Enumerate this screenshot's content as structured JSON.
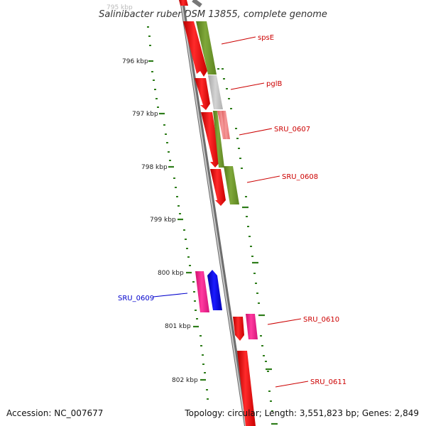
{
  "title": "Salinibacter ruber DSM 13855, complete genome",
  "top_cut_label": "795 kbp",
  "footer": {
    "accession": "Accession: NC_007677",
    "stats": "Topology: circular; Length: 3,551,823 bp; Genes: 2,849"
  },
  "kbp_labels": [
    "796 kbp",
    "797 kbp",
    "798 kbp",
    "799 kbp",
    "800 kbp",
    "801 kbp",
    "802 kbp"
  ],
  "gene_labels": [
    {
      "name": "spsE",
      "color": "#cc0000"
    },
    {
      "name": "pglB",
      "color": "#cc0000"
    },
    {
      "name": "SRU_0607",
      "color": "#cc0000"
    },
    {
      "name": "SRU_0608",
      "color": "#cc0000"
    },
    {
      "name": "SRU_0609",
      "color": "#0000cc"
    },
    {
      "name": "SRU_0610",
      "color": "#cc0000"
    },
    {
      "name": "SRU_0611",
      "color": "#cc0000"
    }
  ],
  "colors": {
    "forward_cds": "#ff0000",
    "pink_cds": "#ff1f8f",
    "blue_cds": "#0000ee",
    "olive_feature": "#6f9a2a",
    "grey_feature": "#bdbdbd",
    "salmon_feature": "#f07a7a",
    "backbone": "#8a8a8a",
    "scale_green": "#2e7d1a"
  }
}
